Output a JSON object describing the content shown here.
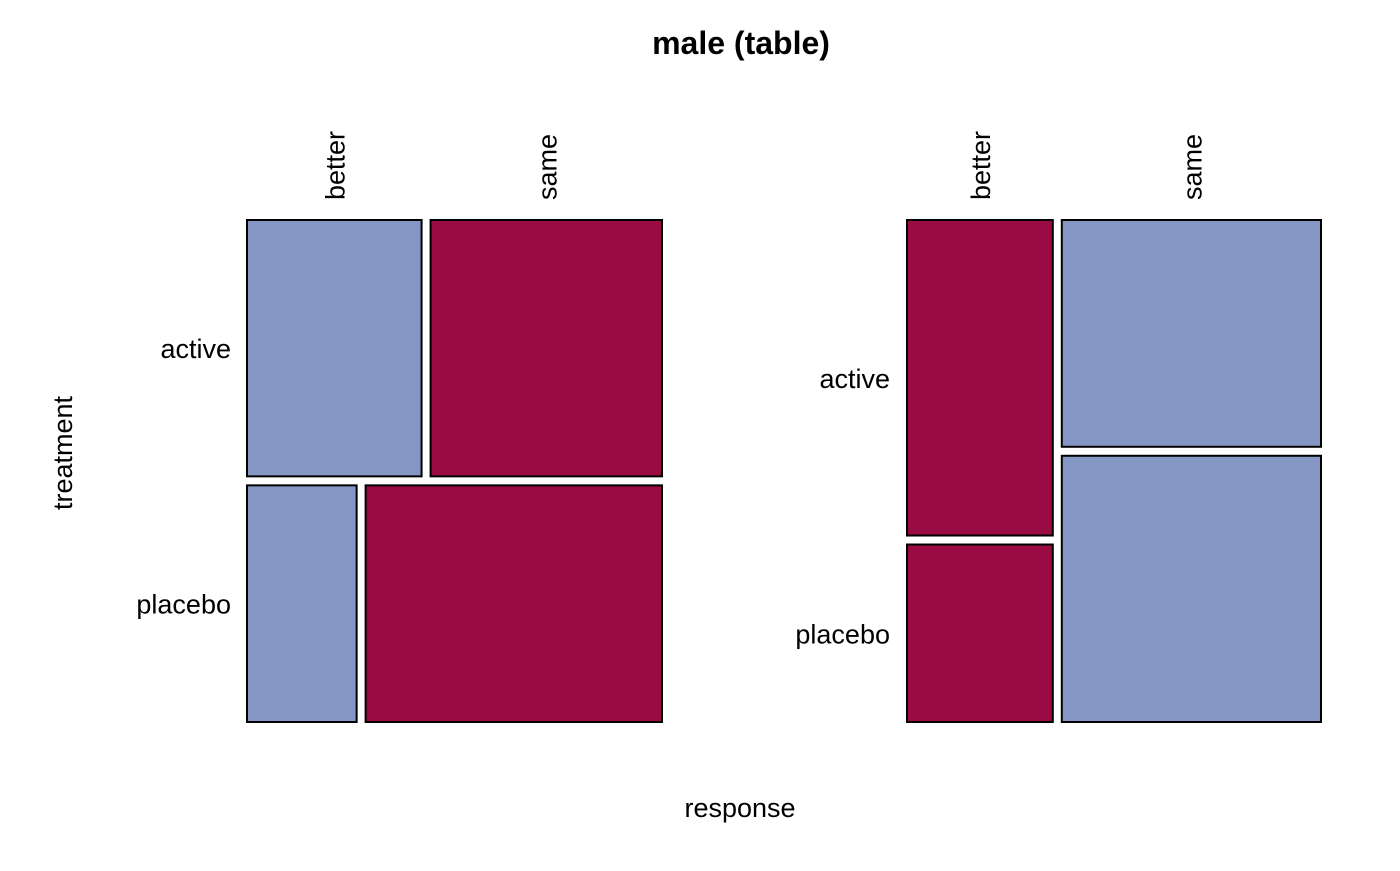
{
  "chart_data": {
    "type": "mosaic",
    "title": "male (table)",
    "xlabel": "response",
    "ylabel": "treatment",
    "row_variable": "treatment",
    "column_variable": "response",
    "rows": [
      "active",
      "placebo"
    ],
    "columns": [
      "better",
      "same"
    ],
    "colors": {
      "blue": "#8497c4",
      "red": "#9b0b43"
    },
    "panels": [
      {
        "panel": "left",
        "split_order": "rows-first",
        "row_fractions": [
          0.52,
          0.48
        ],
        "column_fractions_within_row": [
          [
            0.43,
            0.57
          ],
          [
            0.27,
            0.73
          ]
        ],
        "cell_colors": [
          [
            "blue",
            "red"
          ],
          [
            "blue",
            "red"
          ]
        ]
      },
      {
        "panel": "right",
        "split_order": "columns-first",
        "column_fractions": [
          0.36,
          0.64
        ],
        "row_fractions_within_column": [
          [
            0.64,
            0.36
          ],
          [
            0.46,
            0.54
          ]
        ],
        "cell_colors": [
          [
            "red",
            "red"
          ],
          [
            "blue",
            "blue"
          ]
        ]
      }
    ]
  }
}
